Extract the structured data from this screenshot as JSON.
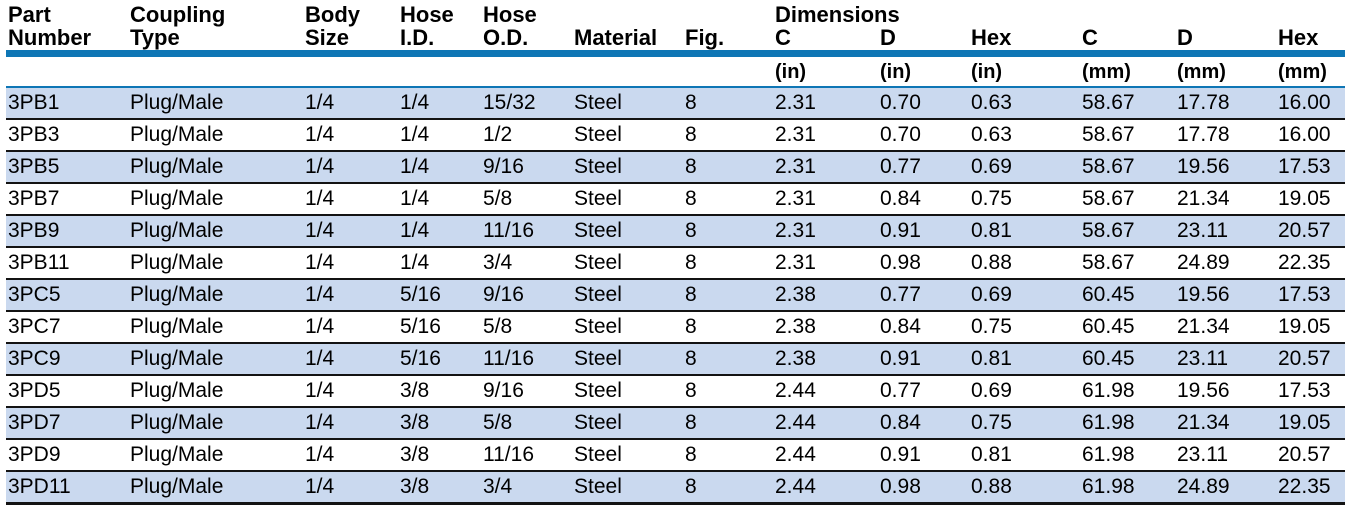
{
  "colors": {
    "accent_blue": "#0e76b5",
    "row_shade": "#cad9ef",
    "divider": "#131313",
    "text": "#000000"
  },
  "table": {
    "group_header": "Dimensions",
    "columns": [
      {
        "id": "part-number",
        "line1": "Part",
        "line2": "Number",
        "unit": ""
      },
      {
        "id": "coupling-type",
        "line1": "Coupling",
        "line2": "Type",
        "unit": ""
      },
      {
        "id": "body-size",
        "line1": "Body",
        "line2": "Size",
        "unit": ""
      },
      {
        "id": "hose-id",
        "line1": "Hose",
        "line2": "I.D.",
        "unit": ""
      },
      {
        "id": "hose-od",
        "line1": "Hose",
        "line2": "O.D.",
        "unit": ""
      },
      {
        "id": "material",
        "line1": "",
        "line2": "Material",
        "unit": ""
      },
      {
        "id": "fig",
        "line1": "",
        "line2": "Fig.",
        "unit": ""
      },
      {
        "id": "c-in",
        "line1": "",
        "line2": "C",
        "unit": "(in)"
      },
      {
        "id": "d-in",
        "line1": "",
        "line2": "D",
        "unit": "(in)"
      },
      {
        "id": "hex-in",
        "line1": "",
        "line2": "Hex",
        "unit": "(in)"
      },
      {
        "id": "c-mm",
        "line1": "",
        "line2": "C",
        "unit": "(mm)"
      },
      {
        "id": "d-mm",
        "line1": "",
        "line2": "D",
        "unit": "(mm)"
      },
      {
        "id": "hex-mm",
        "line1": "",
        "line2": "Hex",
        "unit": "(mm)"
      }
    ],
    "rows": [
      [
        "3PB1",
        "Plug/Male",
        "1/4",
        "1/4",
        "15/32",
        "Steel",
        "8",
        "2.31",
        "0.70",
        "0.63",
        "58.67",
        "17.78",
        "16.00"
      ],
      [
        "3PB3",
        "Plug/Male",
        "1/4",
        "1/4",
        "1/2",
        "Steel",
        "8",
        "2.31",
        "0.70",
        "0.63",
        "58.67",
        "17.78",
        "16.00"
      ],
      [
        "3PB5",
        "Plug/Male",
        "1/4",
        "1/4",
        "9/16",
        "Steel",
        "8",
        "2.31",
        "0.77",
        "0.69",
        "58.67",
        "19.56",
        "17.53"
      ],
      [
        "3PB7",
        "Plug/Male",
        "1/4",
        "1/4",
        "5/8",
        "Steel",
        "8",
        "2.31",
        "0.84",
        "0.75",
        "58.67",
        "21.34",
        "19.05"
      ],
      [
        "3PB9",
        "Plug/Male",
        "1/4",
        "1/4",
        "11/16",
        "Steel",
        "8",
        "2.31",
        "0.91",
        "0.81",
        "58.67",
        "23.11",
        "20.57"
      ],
      [
        "3PB11",
        "Plug/Male",
        "1/4",
        "1/4",
        "3/4",
        "Steel",
        "8",
        "2.31",
        "0.98",
        "0.88",
        "58.67",
        "24.89",
        "22.35"
      ],
      [
        "3PC5",
        "Plug/Male",
        "1/4",
        "5/16",
        "9/16",
        "Steel",
        "8",
        "2.38",
        "0.77",
        "0.69",
        "60.45",
        "19.56",
        "17.53"
      ],
      [
        "3PC7",
        "Plug/Male",
        "1/4",
        "5/16",
        "5/8",
        "Steel",
        "8",
        "2.38",
        "0.84",
        "0.75",
        "60.45",
        "21.34",
        "19.05"
      ],
      [
        "3PC9",
        "Plug/Male",
        "1/4",
        "5/16",
        "11/16",
        "Steel",
        "8",
        "2.38",
        "0.91",
        "0.81",
        "60.45",
        "23.11",
        "20.57"
      ],
      [
        "3PD5",
        "Plug/Male",
        "1/4",
        "3/8",
        "9/16",
        "Steel",
        "8",
        "2.44",
        "0.77",
        "0.69",
        "61.98",
        "19.56",
        "17.53"
      ],
      [
        "3PD7",
        "Plug/Male",
        "1/4",
        "3/8",
        "5/8",
        "Steel",
        "8",
        "2.44",
        "0.84",
        "0.75",
        "61.98",
        "21.34",
        "19.05"
      ],
      [
        "3PD9",
        "Plug/Male",
        "1/4",
        "3/8",
        "11/16",
        "Steel",
        "8",
        "2.44",
        "0.91",
        "0.81",
        "61.98",
        "23.11",
        "20.57"
      ],
      [
        "3PD11",
        "Plug/Male",
        "1/4",
        "3/8",
        "3/4",
        "Steel",
        "8",
        "2.44",
        "0.98",
        "0.88",
        "61.98",
        "24.89",
        "22.35"
      ]
    ]
  }
}
